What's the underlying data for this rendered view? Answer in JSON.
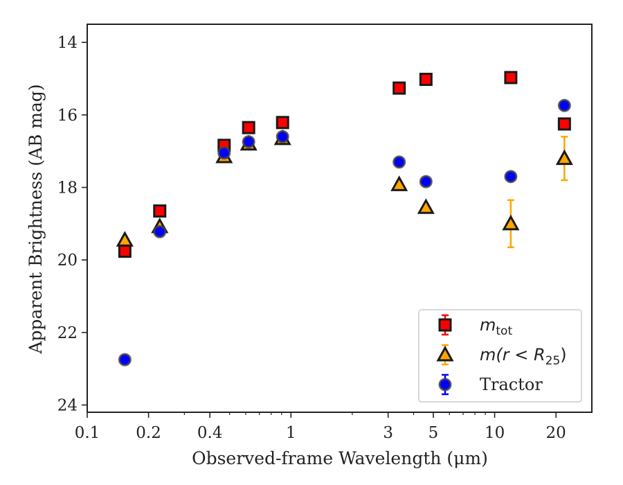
{
  "chart_data": {
    "type": "scatter",
    "xlabel": "Observed-frame Wavelength (μm)",
    "ylabel": "Apparent Brightness (AB mag)",
    "x_scale": "log",
    "xlim": [
      0.1,
      30
    ],
    "ylim": [
      24.2,
      13.5
    ],
    "y_inverted": true,
    "x_ticks": [
      0.1,
      0.2,
      0.4,
      1,
      3,
      5,
      10,
      20
    ],
    "x_tick_labels": [
      "0.1",
      "0.2",
      "0.4",
      "1",
      "3",
      "5",
      "10",
      "20"
    ],
    "y_ticks": [
      14,
      16,
      18,
      20,
      22,
      24
    ],
    "y_tick_labels": [
      "14",
      "16",
      "18",
      "20",
      "22",
      "24"
    ],
    "grid": false,
    "legend_position": "lower-right",
    "series": [
      {
        "name": "m_tot",
        "marker": "square",
        "color": "#ff0000",
        "errorbar_color": "#ff0000",
        "points": [
          {
            "x": 0.153,
            "y": 19.76,
            "err": 0.05
          },
          {
            "x": 0.227,
            "y": 18.65,
            "err": 0.05
          },
          {
            "x": 0.47,
            "y": 16.84,
            "err": 0.03
          },
          {
            "x": 0.62,
            "y": 16.35,
            "err": 0.03
          },
          {
            "x": 0.91,
            "y": 16.21,
            "err": 0.03
          },
          {
            "x": 3.4,
            "y": 15.26,
            "err": 0.03
          },
          {
            "x": 4.6,
            "y": 15.02,
            "err": 0.03
          },
          {
            "x": 12.0,
            "y": 14.97,
            "err": 0.03
          },
          {
            "x": 22.0,
            "y": 16.25,
            "err": 0.05
          }
        ]
      },
      {
        "name": "m(r < R_25)",
        "marker": "triangle",
        "color": "#ffa500",
        "errorbar_color": "#ffa500",
        "points": [
          {
            "x": 0.153,
            "y": 19.45,
            "err": 0.05
          },
          {
            "x": 0.227,
            "y": 19.08,
            "err": 0.05
          },
          {
            "x": 0.47,
            "y": 17.15,
            "err": 0.03
          },
          {
            "x": 0.62,
            "y": 16.8,
            "err": 0.03
          },
          {
            "x": 0.91,
            "y": 16.65,
            "err": 0.03
          },
          {
            "x": 3.4,
            "y": 17.92,
            "err": 0.05
          },
          {
            "x": 4.6,
            "y": 18.55,
            "err": 0.05
          },
          {
            "x": 12.0,
            "y": 19.0,
            "err": 0.65
          },
          {
            "x": 22.0,
            "y": 17.2,
            "err": 0.6
          }
        ]
      },
      {
        "name": "Tractor",
        "marker": "circle",
        "color": "#0000ff",
        "errorbar_color": "#0000ff",
        "points": [
          {
            "x": 0.153,
            "y": 22.75,
            "err": 0.05
          },
          {
            "x": 0.227,
            "y": 19.22,
            "err": 0.05
          },
          {
            "x": 0.47,
            "y": 17.05,
            "err": 0.03
          },
          {
            "x": 0.62,
            "y": 16.74,
            "err": 0.03
          },
          {
            "x": 0.91,
            "y": 16.6,
            "err": 0.03
          },
          {
            "x": 3.4,
            "y": 17.3,
            "err": 0.05
          },
          {
            "x": 4.6,
            "y": 17.84,
            "err": 0.05
          },
          {
            "x": 12.0,
            "y": 17.7,
            "err": 0.05
          },
          {
            "x": 22.0,
            "y": 15.74,
            "err": 0.05
          }
        ]
      }
    ],
    "legend": [
      {
        "marker": "square",
        "label_main": "m",
        "label_sub": "tot",
        "text": "m_tot"
      },
      {
        "marker": "triangle",
        "label_main": "m(r < R",
        "label_sub": "25",
        "label_tail": ")",
        "text": "m(r < R_25)"
      },
      {
        "marker": "circle",
        "label_main": "Tractor",
        "text": "Tractor"
      }
    ]
  }
}
